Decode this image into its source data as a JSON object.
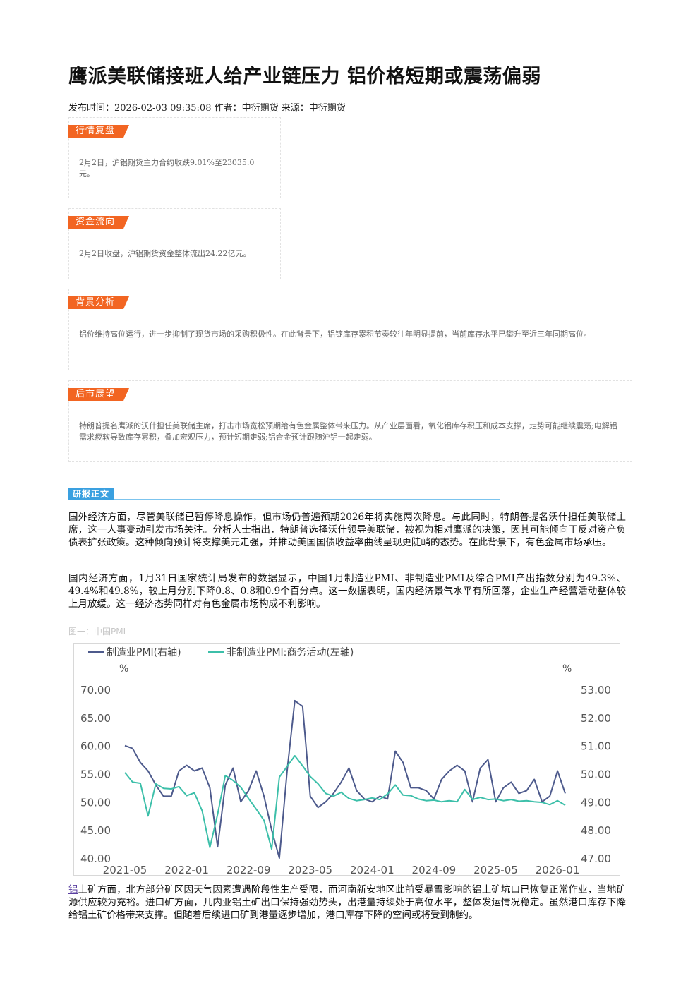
{
  "article": {
    "title": "鹰派美联储接班人给产业链压力 铝价格短期或震荡偏弱",
    "meta": "发布时间：2026-02-03 09:35:08 作者：中衍期货 来源：中衍期货"
  },
  "sections": [
    {
      "tag": "行情复盘",
      "text": "2月2日，沪铝期货主力合约收跌9.01%至23035.0元。"
    },
    {
      "tag": "资金流向",
      "text": "2月2日收盘，沪铝期货资金整体流出24.22亿元。"
    },
    {
      "tag": "背景分析",
      "text": "铝价维持高位运行，进一步抑制了现货市场的采购积极性。在此背景下，铝锭库存累积节奏较往年明显提前，当前库存水平已攀升至近三年同期高位。"
    },
    {
      "tag": "后市展望",
      "text": "特朗普提名鹰派的沃什担任美联储主席，打击市场宽松预期给有色金属整体带来压力。从产业层面看，氧化铝库存积压和成本支撑，走势可能继续震荡;电解铝需求疲软导致库存累积，叠加宏观压力，预计短期走弱;铝合金预计跟随沪铝一起走弱。"
    }
  ],
  "report": {
    "tag": "研报正文",
    "para1": "国外经济方面，尽管美联储已暂停降息操作，但市场仍普遍预期2026年将实施两次降息。与此同时，特朗普提名沃什担任美联储主席，这一人事变动引发市场关注。分析人士指出，特朗普选择沃什领导美联储，被视为相对鹰派的决策，因其可能倾向于反对资产负债表扩张政策。这种倾向预计将支撑美元走强，并推动美国国债收益率曲线呈现更陡峭的态势。在此背景下，有色金属市场承压。",
    "para2": "国内经济方面，1月31日国家统计局发布的数据显示，中国1月制造业PMI、非制造业PMI及综合PMI产出指数分别为49.3%、49.4%和49.8%，较上月分别下降0.8、0.8和0.9个百分点。这一数据表明，国内经济景气水平有所回落，企业生产经营活动整体较上月放缓。这一经济态势同样对有色金属市场构成不利影响。",
    "fig_caption": "图一：中国PMI",
    "para3_link": "铝",
    "para3": "土矿方面，北方部分矿区因天气因素遭遇阶段性生产受限，而河南新安地区此前受暴雪影响的铝土矿坑口已恢复正常作业，当地矿源供应较为充裕。进口矿方面，几内亚铝土矿出口保持强劲势头，出港量持续处于高位水平，整体发运情况稳定。虽然港口库存下降给铝土矿价格带来支撑。但随着后续进口矿到港量逐步增加，港口库存下降的空间或将受到制约。"
  },
  "chart_data": {
    "type": "line",
    "title": "",
    "legend_position": "top-left",
    "y_left": {
      "unit": "%",
      "range": [
        40,
        70
      ],
      "ticks": [
        "70.00",
        "65.00",
        "60.00",
        "55.00",
        "50.00",
        "45.00",
        "40.00"
      ]
    },
    "y_right": {
      "unit": "%",
      "range": [
        47,
        53
      ],
      "ticks": [
        "53.00",
        "52.00",
        "51.00",
        "50.00",
        "49.00",
        "48.00",
        "47.00"
      ]
    },
    "x_ticks": [
      "2021-05",
      "2022-01",
      "2022-09",
      "2023-05",
      "2024-01",
      "2024-09",
      "2025-05",
      "2026-01"
    ],
    "x_range": [
      0,
      57
    ],
    "grid": false,
    "series": [
      {
        "name": "制造业PMI(右轴)",
        "axis": "right",
        "color": "#4d5a8c",
        "values": [
          51.0,
          50.9,
          50.4,
          50.1,
          49.6,
          49.2,
          49.2,
          50.1,
          50.3,
          50.1,
          50.2,
          49.5,
          47.4,
          49.6,
          50.2,
          49.0,
          49.4,
          50.1,
          49.2,
          48.0,
          47.0,
          50.1,
          52.6,
          52.4,
          49.2,
          48.8,
          49.0,
          49.3,
          49.7,
          50.2,
          49.4,
          49.1,
          49.0,
          49.2,
          49.1,
          50.8,
          50.4,
          49.5,
          49.5,
          49.4,
          49.1,
          49.8,
          50.1,
          50.3,
          50.1,
          49.0,
          50.2,
          50.5,
          49.0,
          49.5,
          49.7,
          49.3,
          49.4,
          49.8,
          49.0,
          49.2,
          50.1,
          49.3
        ],
        "x_index": [
          0,
          1,
          2,
          3,
          4,
          5,
          6,
          7,
          8,
          9,
          10,
          11,
          12,
          13,
          14,
          15,
          16,
          17,
          18,
          19,
          20,
          21,
          22,
          23,
          24,
          25,
          26,
          27,
          28,
          29,
          30,
          31,
          32,
          33,
          34,
          35,
          36,
          37,
          38,
          39,
          40,
          41,
          42,
          43,
          44,
          45,
          46,
          47,
          48,
          49,
          50,
          51,
          52,
          53,
          54,
          55,
          56,
          57
        ]
      },
      {
        "name": "非制造业PMI:商务活动(左轴)",
        "axis": "left",
        "color": "#3cbfa9",
        "values": [
          55.2,
          53.5,
          53.3,
          47.5,
          53.2,
          52.4,
          52.3,
          52.7,
          51.1,
          51.6,
          48.4,
          41.9,
          47.8,
          54.7,
          53.8,
          52.6,
          50.6,
          48.7,
          46.7,
          41.6,
          54.4,
          56.3,
          58.2,
          56.4,
          54.5,
          53.2,
          51.5,
          51.0,
          51.7,
          50.6,
          50.2,
          50.4,
          50.7,
          50.4,
          51.4,
          53.0,
          51.2,
          51.1,
          50.5,
          50.2,
          50.3,
          50.0,
          50.2,
          50.0,
          52.2,
          50.4,
          50.8,
          50.4,
          50.5,
          50.2,
          50.4,
          50.1,
          50.2,
          50.0,
          49.9,
          49.5,
          50.2,
          49.4
        ],
        "x_index": [
          0,
          1,
          2,
          3,
          4,
          5,
          6,
          7,
          8,
          9,
          10,
          11,
          12,
          13,
          14,
          15,
          16,
          17,
          18,
          19,
          20,
          21,
          22,
          23,
          24,
          25,
          26,
          27,
          28,
          29,
          30,
          31,
          32,
          33,
          34,
          35,
          36,
          37,
          38,
          39,
          40,
          41,
          42,
          43,
          44,
          45,
          46,
          47,
          48,
          49,
          50,
          51,
          52,
          53,
          54,
          55,
          56,
          57
        ]
      }
    ]
  }
}
